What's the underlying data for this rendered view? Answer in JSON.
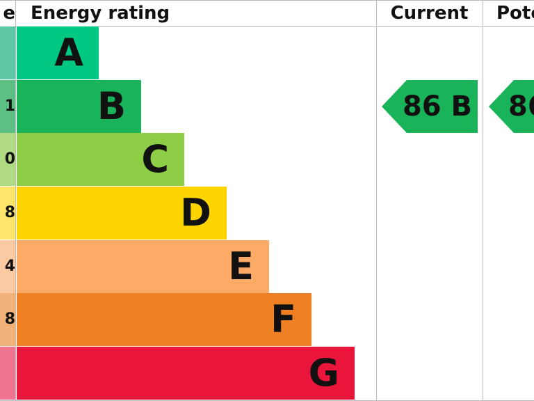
{
  "header": {
    "score": "e",
    "rating": "Energy rating",
    "current": "Current",
    "potential": "Pote"
  },
  "rows": [
    {
      "score": "",
      "letter": "A"
    },
    {
      "score": "1",
      "letter": "B"
    },
    {
      "score": "0",
      "letter": "C"
    },
    {
      "score": "8",
      "letter": "D"
    },
    {
      "score": "4",
      "letter": "E"
    },
    {
      "score": "8",
      "letter": "F"
    },
    {
      "score": "",
      "letter": "G"
    }
  ],
  "current": "86 B",
  "potential": "86"
}
